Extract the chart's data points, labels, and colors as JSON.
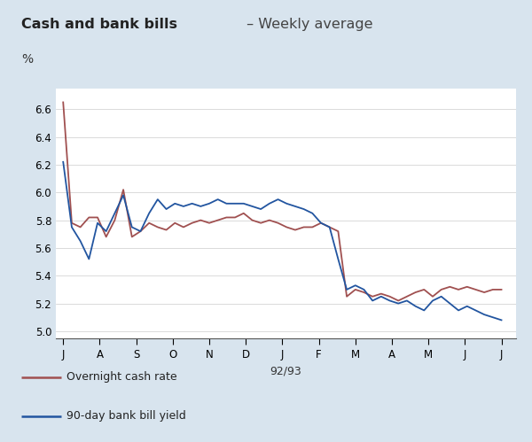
{
  "title_bold": "Cash and bank bills",
  "title_regular": " – Weekly average",
  "ylabel": "%",
  "xlabel": "92/93",
  "background_color": "#d8e4ee",
  "plot_background": "#ffffff",
  "x_tick_labels": [
    "J",
    "A",
    "S",
    "O",
    "N",
    "D",
    "J",
    "F",
    "M",
    "A",
    "M",
    "J",
    "J"
  ],
  "ylim": [
    4.95,
    6.75
  ],
  "yticks": [
    5.0,
    5.2,
    5.4,
    5.6,
    5.8,
    6.0,
    6.2,
    6.4,
    6.6
  ],
  "cash_rate_color": "#a05050",
  "bill_yield_color": "#2255a0",
  "legend_cash": "Overnight cash rate",
  "legend_bill": "90-day bank bill yield",
  "cash_rate": [
    6.65,
    5.78,
    5.75,
    5.82,
    5.82,
    5.68,
    5.8,
    6.02,
    5.68,
    5.72,
    5.78,
    5.75,
    5.73,
    5.78,
    5.75,
    5.78,
    5.8,
    5.78,
    5.8,
    5.82,
    5.82,
    5.85,
    5.8,
    5.78,
    5.8,
    5.78,
    5.75,
    5.73,
    5.75,
    5.75,
    5.78,
    5.75,
    5.72,
    5.25,
    5.3,
    5.28,
    5.25,
    5.27,
    5.25,
    5.22,
    5.25,
    5.28,
    5.3,
    5.25,
    5.3,
    5.32,
    5.3,
    5.32,
    5.3,
    5.28,
    5.3,
    5.3
  ],
  "bill_yield": [
    6.22,
    5.75,
    5.65,
    5.52,
    5.78,
    5.72,
    5.85,
    5.98,
    5.75,
    5.72,
    5.85,
    5.95,
    5.88,
    5.92,
    5.9,
    5.92,
    5.9,
    5.92,
    5.95,
    5.92,
    5.92,
    5.92,
    5.9,
    5.88,
    5.92,
    5.95,
    5.92,
    5.9,
    5.88,
    5.85,
    5.78,
    5.75,
    5.52,
    5.3,
    5.33,
    5.3,
    5.22,
    5.25,
    5.22,
    5.2,
    5.22,
    5.18,
    5.15,
    5.22,
    5.25,
    5.2,
    5.15,
    5.18,
    5.15,
    5.12,
    5.1,
    5.08
  ]
}
